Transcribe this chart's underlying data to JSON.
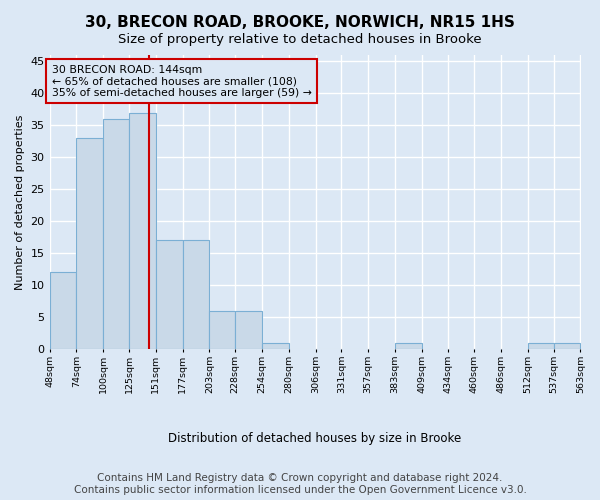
{
  "title": "30, BRECON ROAD, BROOKE, NORWICH, NR15 1HS",
  "subtitle": "Size of property relative to detached houses in Brooke",
  "xlabel": "Distribution of detached houses by size in Brooke",
  "ylabel": "Number of detached properties",
  "bar_edges": [
    48,
    74,
    100,
    125,
    151,
    177,
    203,
    228,
    254,
    280,
    306,
    331,
    357,
    383,
    409,
    434,
    460,
    486,
    512,
    537,
    563
  ],
  "bar_heights": [
    12,
    33,
    36,
    37,
    17,
    17,
    6,
    6,
    1,
    0,
    0,
    0,
    0,
    1,
    0,
    0,
    0,
    0,
    1,
    1
  ],
  "tick_labels": [
    "48sqm",
    "74sqm",
    "100sqm",
    "125sqm",
    "151sqm",
    "177sqm",
    "203sqm",
    "228sqm",
    "254sqm",
    "280sqm",
    "306sqm",
    "331sqm",
    "357sqm",
    "383sqm",
    "409sqm",
    "434sqm",
    "460sqm",
    "486sqm",
    "512sqm",
    "537sqm",
    "563sqm"
  ],
  "bar_color": "#c9d9e8",
  "bar_edgecolor": "#7bafd4",
  "property_line_x": 144,
  "property_line_color": "#cc0000",
  "annotation_text": "30 BRECON ROAD: 144sqm\n← 65% of detached houses are smaller (108)\n35% of semi-detached houses are larger (59) →",
  "annotation_box_color": "#cc0000",
  "ylim": [
    0,
    46
  ],
  "yticks": [
    0,
    5,
    10,
    15,
    20,
    25,
    30,
    35,
    40,
    45
  ],
  "footer": "Contains HM Land Registry data © Crown copyright and database right 2024.\nContains public sector information licensed under the Open Government Licence v3.0.",
  "bg_color": "#dce8f5",
  "plot_bg_color": "#dce8f5",
  "grid_color": "#ffffff",
  "title_fontsize": 11,
  "subtitle_fontsize": 9.5,
  "footer_fontsize": 7.5
}
